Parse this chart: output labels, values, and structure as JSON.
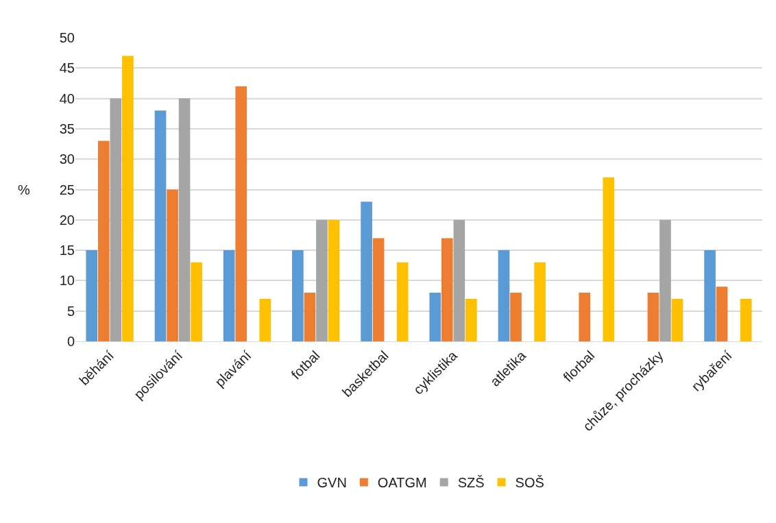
{
  "chart_data": {
    "type": "bar",
    "ylabel": "%",
    "categories": [
      "běhání",
      "posilování",
      "plavání",
      "fotbal",
      "basketbal",
      "cyklistika",
      "atletika",
      "florbal",
      "chůze, procházky",
      "rybaření"
    ],
    "series": [
      {
        "name": "GVN",
        "color": "#5b9bd5",
        "values": [
          15,
          38,
          15,
          15,
          23,
          8,
          15,
          null,
          null,
          15
        ]
      },
      {
        "name": "OATGM",
        "color": "#ed7d31",
        "values": [
          33,
          25,
          42,
          8,
          17,
          17,
          8,
          8,
          8,
          9
        ]
      },
      {
        "name": "SZŠ",
        "color": "#a5a5a5",
        "values": [
          40,
          40,
          null,
          20,
          null,
          20,
          null,
          null,
          20,
          null
        ]
      },
      {
        "name": "SOŠ",
        "color": "#ffc000",
        "values": [
          47,
          13,
          7,
          20,
          13,
          7,
          13,
          27,
          7,
          7
        ]
      }
    ],
    "ylim": [
      0,
      50
    ],
    "yticks": [
      0,
      5,
      10,
      15,
      20,
      25,
      30,
      35,
      40,
      45,
      50
    ],
    "grid": "y",
    "legend": "bottom"
  }
}
